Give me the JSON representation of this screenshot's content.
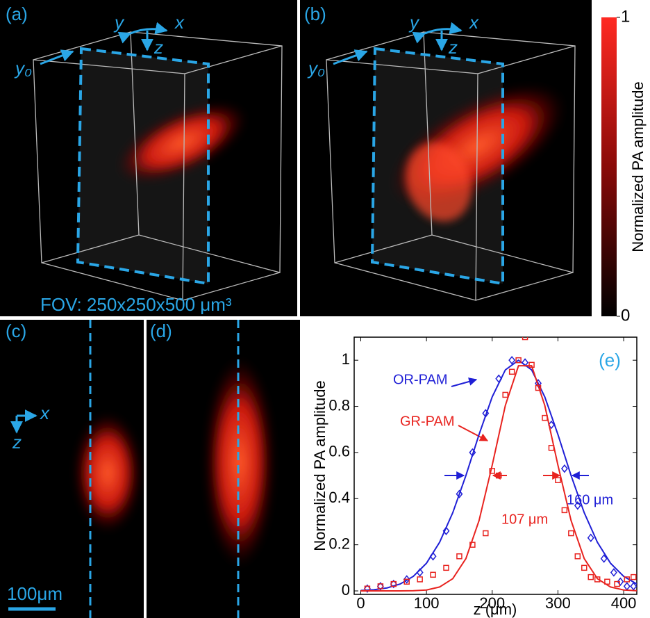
{
  "panels": {
    "a": {
      "label": "(a)",
      "axis_y": "y",
      "axis_x": "x",
      "axis_z": "z",
      "plane": "y₀",
      "fov": "FOV: 250x250x500 μm³"
    },
    "b": {
      "label": "(b)",
      "axis_y": "y",
      "axis_x": "x",
      "axis_z": "z",
      "plane": "y₀"
    },
    "c": {
      "label": "(c)",
      "axis_x": "x",
      "axis_z": "z",
      "scale_bar": "100μm"
    },
    "d": {
      "label": "(d)"
    }
  },
  "colorbar": {
    "label": "Normalized PA amplitude",
    "ticks": [
      0,
      1
    ]
  },
  "chart_data": {
    "type": "scatter",
    "panel_label": "(e)",
    "x_label": "z (μm)",
    "y_label": "Normalized PA amplitude",
    "xlim": [
      -10,
      420
    ],
    "ylim": [
      -0.015,
      1.1
    ],
    "xticks": [
      0,
      100,
      200,
      300,
      400
    ],
    "yticks": [
      0,
      0.2,
      0.4,
      0.6,
      0.8,
      1
    ],
    "series": [
      {
        "name": "OR-PAM",
        "color": "#1f1fd6",
        "marker": "diamond",
        "x": [
          10,
          30,
          50,
          70,
          90,
          110,
          130,
          150,
          170,
          190,
          210,
          230,
          250,
          270,
          290,
          310,
          330,
          350,
          370,
          385,
          395,
          405,
          415
        ],
        "values": [
          0.01,
          0.02,
          0.03,
          0.05,
          0.08,
          0.15,
          0.26,
          0.42,
          0.6,
          0.77,
          0.92,
          1.0,
          0.99,
          0.9,
          0.72,
          0.53,
          0.37,
          0.23,
          0.14,
          0.08,
          0.04,
          0.02,
          0.02
        ],
        "fit_x": [
          0,
          20,
          40,
          60,
          80,
          100,
          120,
          140,
          160,
          180,
          200,
          220,
          240,
          260,
          280,
          300,
          320,
          340,
          360,
          380,
          400,
          420
        ],
        "fit_values": [
          0.002,
          0.005,
          0.013,
          0.03,
          0.063,
          0.12,
          0.211,
          0.339,
          0.5,
          0.678,
          0.841,
          0.958,
          1,
          0.958,
          0.841,
          0.678,
          0.5,
          0.339,
          0.211,
          0.12,
          0.063,
          0.03
        ],
        "fwhm_label": "160 μm"
      },
      {
        "name": "GR-PAM",
        "color": "#e8231f",
        "marker": "square",
        "x": [
          10,
          30,
          50,
          70,
          90,
          110,
          130,
          150,
          170,
          190,
          200,
          210,
          220,
          230,
          240,
          250,
          260,
          270,
          280,
          290,
          300,
          310,
          320,
          330,
          340,
          350,
          360,
          375,
          390,
          405,
          415
        ],
        "values": [
          0.01,
          0.02,
          0.03,
          0.04,
          0.05,
          0.07,
          0.1,
          0.15,
          0.2,
          0.25,
          0.52,
          0.5,
          0.85,
          0.95,
          1.0,
          1.1,
          0.98,
          0.88,
          0.75,
          0.62,
          0.48,
          0.35,
          0.25,
          0.15,
          0.1,
          0.06,
          0.05,
          0.04,
          0.03,
          0.05,
          0.06
        ],
        "fit_x": [
          0,
          20,
          40,
          60,
          80,
          100,
          120,
          140,
          160,
          180,
          200,
          220,
          240,
          260,
          280,
          300,
          320,
          340,
          360,
          380,
          400,
          420
        ],
        "fit_values": [
          0,
          0,
          0,
          0,
          0.001,
          0.004,
          0.017,
          0.053,
          0.14,
          0.305,
          0.545,
          0.804,
          0.976,
          0.976,
          0.804,
          0.545,
          0.305,
          0.14,
          0.053,
          0.017,
          0.004,
          0.001
        ],
        "fwhm_label": "107 μm"
      }
    ]
  }
}
